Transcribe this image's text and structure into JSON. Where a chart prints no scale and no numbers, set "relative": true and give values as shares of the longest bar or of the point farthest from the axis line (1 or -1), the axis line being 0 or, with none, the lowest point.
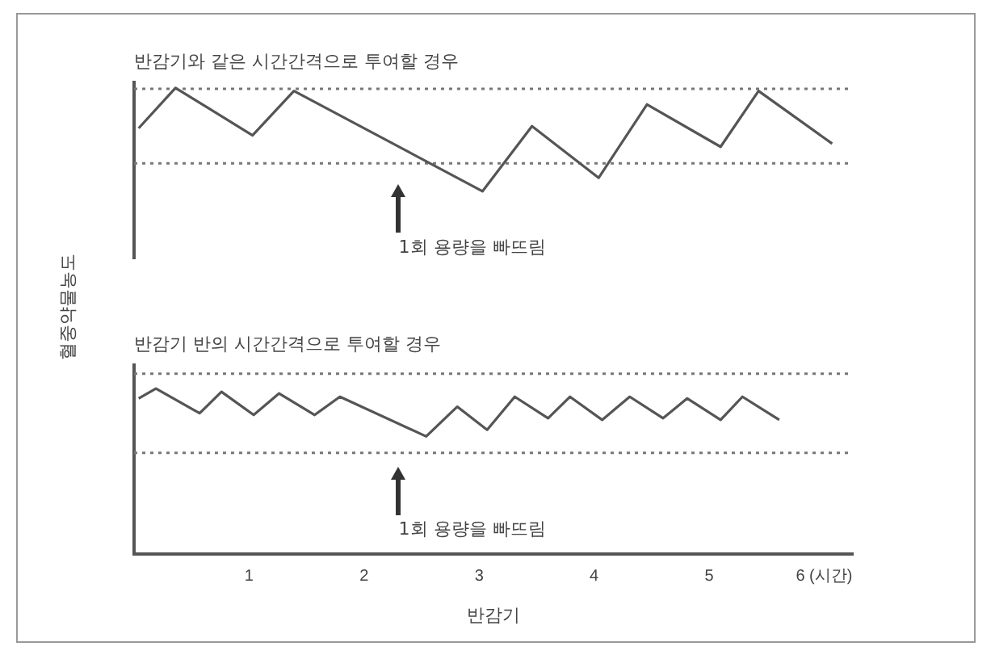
{
  "chart_data": [
    {
      "type": "line",
      "title": "반감기와 같은 시간간격으로 투여할 경우",
      "ylabel": "혈중약물농도",
      "relative": true,
      "xlim": [
        0,
        6.25
      ],
      "tick_labels": false,
      "legend": false,
      "grid": false,
      "marker": "none",
      "line_style": "solid",
      "series": [
        {
          "color": "#555555",
          "x": [
            0.04,
            0.36,
            1.03,
            1.39,
            3.03,
            3.46,
            4.04,
            4.46,
            5.1,
            5.43,
            6.07
          ],
          "values": [
            0.61,
            1,
            0.54,
            0.97,
            0,
            0.63,
            0.13,
            0.84,
            0.43,
            0.97,
            0.46
          ]
        }
      ],
      "ref_lines": [
        {
          "axis": "y",
          "value": 0.99,
          "color": "#777777",
          "line_style": "dotted"
        },
        {
          "axis": "y",
          "value": 0.27,
          "color": "#777777",
          "line_style": "dotted"
        }
      ],
      "annotations": [
        "1회 용량을 빠뜨림"
      ]
    },
    {
      "type": "line",
      "title": "반감기 반의 시간간격으로 투여할 경우",
      "xlabel": "반감기",
      "relative": true,
      "xlim": [
        0,
        6.25
      ],
      "xticks": [
        1,
        2,
        3,
        4,
        5,
        {
          "value": 6,
          "label": "6 (시간)"
        }
      ],
      "tick_labels": "x",
      "legend": false,
      "grid": false,
      "marker": "none",
      "line_style": "solid",
      "series": [
        {
          "color": "#555555",
          "x": [
            0.04,
            0.19,
            0.57,
            0.76,
            1.04,
            1.26,
            1.57,
            1.79,
            2.54,
            2.81,
            3.07,
            3.31,
            3.6,
            3.79,
            4.07,
            4.31,
            4.6,
            4.81,
            5.1,
            5.29,
            5.61
          ],
          "values": [
            0.94,
            1,
            0.85,
            0.98,
            0.84,
            0.97,
            0.84,
            0.95,
            0.71,
            0.89,
            0.75,
            0.95,
            0.82,
            0.95,
            0.81,
            0.95,
            0.82,
            0.94,
            0.81,
            0.95,
            0.81
          ]
        }
      ],
      "ref_lines": [
        {
          "axis": "y",
          "value": 1.09,
          "color": "#777777",
          "line_style": "dotted"
        },
        {
          "axis": "y",
          "value": 0.61,
          "color": "#777777",
          "line_style": "dotted"
        }
      ],
      "annotations": [
        "1회 용량을 빠뜨림"
      ]
    }
  ]
}
